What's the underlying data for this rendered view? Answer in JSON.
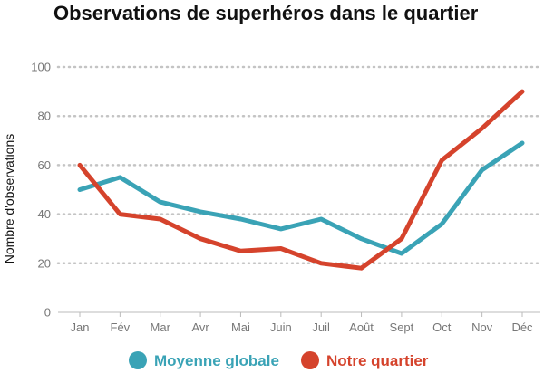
{
  "chart_data": {
    "type": "line",
    "title": "Observations de superhéros dans le quartier",
    "xlabel": "",
    "ylabel": "Nombre d'observations",
    "categories": [
      "Jan",
      "Fév",
      "Mar",
      "Avr",
      "Mai",
      "Juin",
      "Juil",
      "Août",
      "Sept",
      "Oct",
      "Nov",
      "Déc"
    ],
    "yticks": [
      0,
      20,
      40,
      60,
      80,
      100
    ],
    "ylim": [
      0,
      100
    ],
    "grid": "horizontal dotted",
    "legend_position": "bottom",
    "series": [
      {
        "name": "Moyenne globale",
        "color": "#3aa3b6",
        "values": [
          50,
          55,
          45,
          41,
          38,
          34,
          38,
          30,
          24,
          36,
          58,
          69
        ]
      },
      {
        "name": "Notre quartier",
        "color": "#d5432c",
        "values": [
          60,
          40,
          38,
          30,
          25,
          26,
          20,
          18,
          30,
          62,
          75,
          90
        ]
      }
    ]
  }
}
